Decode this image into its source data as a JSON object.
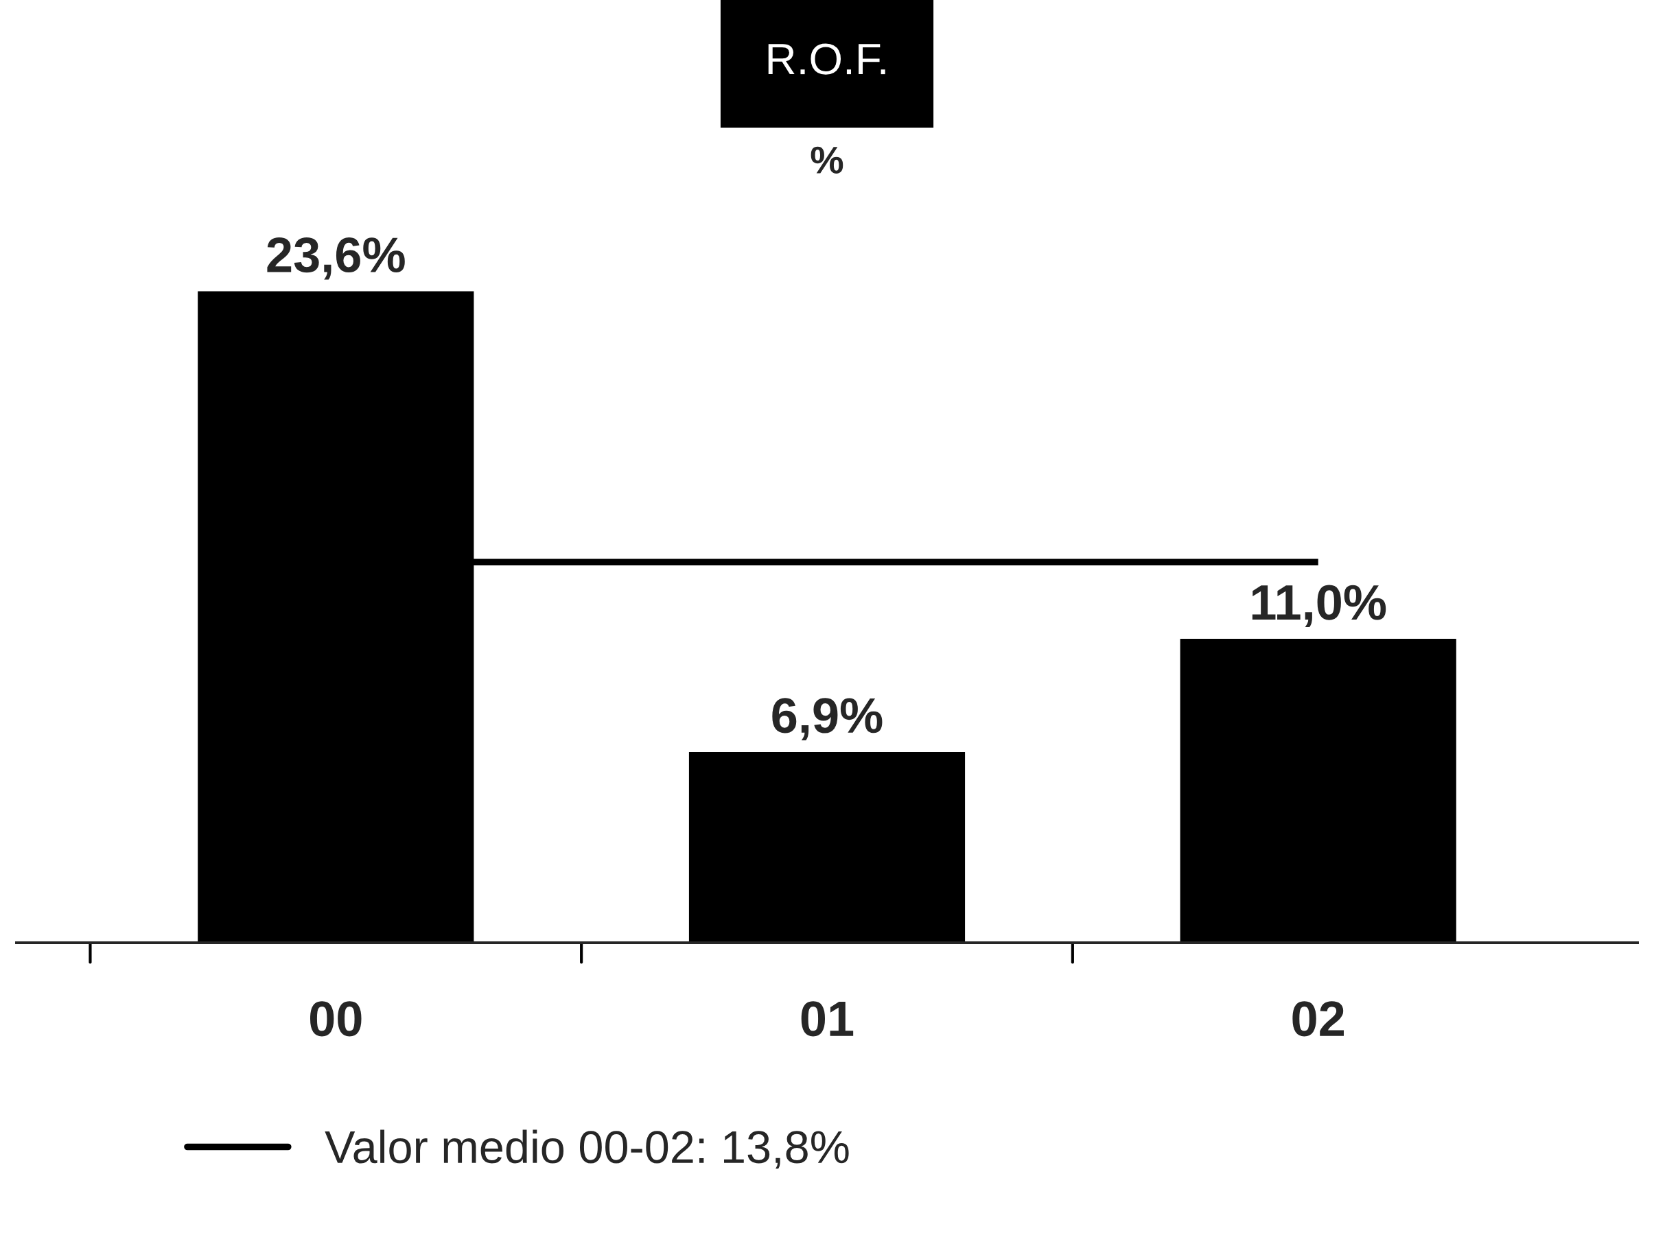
{
  "chart_data": {
    "type": "bar",
    "title": "R.O.F.",
    "subtitle": "%",
    "categories": [
      "00",
      "01",
      "02"
    ],
    "values": [
      23.6,
      6.9,
      11.0
    ],
    "value_labels": [
      "23,6%",
      "6,9%",
      "11,0%"
    ],
    "color": "#000000",
    "ref_lines": [
      {
        "axis": "y",
        "value": 13.8,
        "label": "Valor medio 00-02: 13,8%",
        "color": "#000000",
        "line_style": "solid"
      }
    ],
    "legend": "bottom",
    "grid": false
  }
}
